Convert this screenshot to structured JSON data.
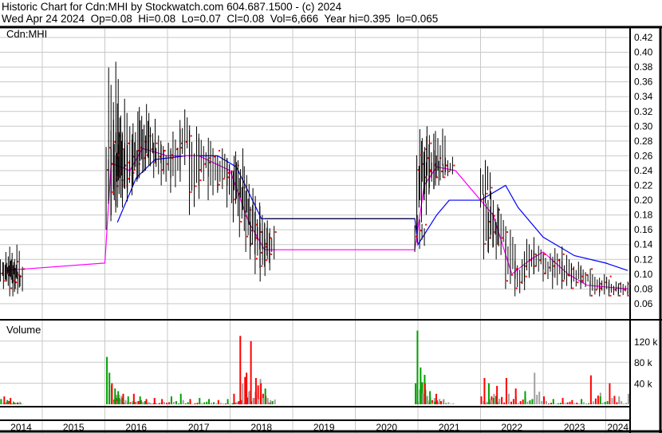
{
  "header": {
    "line1": "Historic Chart for Cdn:MHI by Stockwatch.com 604.687.1500 - (c) 2024",
    "line2": "Wed Apr 24 2024  Op=0.08  Hi=0.08  Lo=0.07  Cl=0.08  Vol=6,666  Year hi=0.395  lo=0.065"
  },
  "chart_data": {
    "type": "line",
    "price_panel_label": "Cdn:MHI",
    "volume_panel_label": "Volume",
    "price_ticks": [
      "0.42",
      "0.40",
      "0.38",
      "0.36",
      "0.34",
      "0.32",
      "0.30",
      "0.28",
      "0.26",
      "0.24",
      "0.22",
      "0.20",
      "0.18",
      "0.16",
      "0.14",
      "0.12",
      "0.10",
      "0.08",
      "0.06"
    ],
    "price_ylim": [
      0.05,
      0.43
    ],
    "volume_ticks": [
      "40 k",
      "80 k",
      "120 k"
    ],
    "volume_ylim": [
      0,
      150
    ],
    "year_labels": [
      "2014",
      "2015",
      "2016",
      "2017",
      "2018",
      "2019",
      "2020",
      "2021",
      "2022",
      "2023",
      "2024"
    ],
    "xlim": [
      2014.32,
      2024.39
    ],
    "grid": true,
    "colors": {
      "bars": "#000000",
      "up_marks": "#ff0000",
      "ma_short": "#ff00ff",
      "ma_long": "#0000ff",
      "halt_line": "#000000",
      "vol_up": "#00a000",
      "vol_down": "#ff0000",
      "vol_flat": "#a0a0a0"
    },
    "ohlcv_columns": [
      "year",
      "high",
      "low",
      "close",
      "volume_k"
    ],
    "ohlcv": [
      [
        2014.33,
        0.12,
        0.09,
        0.11,
        10
      ],
      [
        2014.38,
        0.13,
        0.08,
        0.1,
        15
      ],
      [
        2014.43,
        0.12,
        0.09,
        0.11,
        8
      ],
      [
        2014.48,
        0.14,
        0.07,
        0.09,
        12
      ],
      [
        2014.53,
        0.11,
        0.07,
        0.1,
        5
      ],
      [
        2016.02,
        0.3,
        0.16,
        0.25,
        90
      ],
      [
        2016.06,
        0.395,
        0.2,
        0.28,
        60
      ],
      [
        2016.1,
        0.32,
        0.18,
        0.22,
        40
      ],
      [
        2016.15,
        0.3,
        0.2,
        0.24,
        30
      ],
      [
        2016.2,
        0.35,
        0.19,
        0.27,
        25
      ],
      [
        2016.28,
        0.29,
        0.19,
        0.23,
        20
      ],
      [
        2016.36,
        0.3,
        0.21,
        0.26,
        15
      ],
      [
        2016.45,
        0.32,
        0.22,
        0.25,
        20
      ],
      [
        2016.55,
        0.33,
        0.23,
        0.28,
        15
      ],
      [
        2016.65,
        0.31,
        0.24,
        0.27,
        10
      ],
      [
        2016.78,
        0.29,
        0.23,
        0.26,
        12
      ],
      [
        2016.9,
        0.28,
        0.22,
        0.25,
        10
      ],
      [
        2017.05,
        0.3,
        0.21,
        0.27,
        15
      ],
      [
        2017.2,
        0.33,
        0.24,
        0.28,
        20
      ],
      [
        2017.35,
        0.31,
        0.18,
        0.22,
        10
      ],
      [
        2017.5,
        0.29,
        0.22,
        0.25,
        12
      ],
      [
        2017.65,
        0.28,
        0.2,
        0.26,
        10
      ],
      [
        2017.8,
        0.27,
        0.21,
        0.23,
        8
      ],
      [
        2017.95,
        0.26,
        0.19,
        0.24,
        10
      ],
      [
        2018.05,
        0.27,
        0.17,
        0.21,
        20
      ],
      [
        2018.15,
        0.25,
        0.15,
        0.18,
        130
      ],
      [
        2018.25,
        0.22,
        0.13,
        0.16,
        60
      ],
      [
        2018.32,
        0.2,
        0.12,
        0.15,
        120
      ],
      [
        2018.4,
        0.2,
        0.1,
        0.13,
        50
      ],
      [
        2018.48,
        0.18,
        0.09,
        0.12,
        40
      ],
      [
        2018.55,
        0.17,
        0.11,
        0.15,
        30
      ],
      [
        2020.95,
        0.18,
        0.13,
        0.16,
        40
      ],
      [
        2020.98,
        0.28,
        0.16,
        0.25,
        140
      ],
      [
        2021.03,
        0.3,
        0.2,
        0.27,
        70
      ],
      [
        2021.1,
        0.29,
        0.2,
        0.24,
        40
      ],
      [
        2021.18,
        0.27,
        0.21,
        0.25,
        25
      ],
      [
        2021.28,
        0.3,
        0.22,
        0.24,
        20
      ],
      [
        2021.4,
        0.26,
        0.23,
        0.24,
        10
      ],
      [
        2022.0,
        0.26,
        0.19,
        0.21,
        15
      ],
      [
        2022.05,
        0.22,
        0.12,
        0.15,
        50
      ],
      [
        2022.12,
        0.2,
        0.13,
        0.18,
        40
      ],
      [
        2022.25,
        0.19,
        0.12,
        0.15,
        35
      ],
      [
        2022.4,
        0.16,
        0.08,
        0.1,
        50
      ],
      [
        2022.55,
        0.12,
        0.07,
        0.09,
        30
      ],
      [
        2022.7,
        0.15,
        0.09,
        0.12,
        25
      ],
      [
        2022.85,
        0.14,
        0.1,
        0.12,
        60
      ],
      [
        2023.0,
        0.13,
        0.09,
        0.11,
        15
      ],
      [
        2023.15,
        0.14,
        0.08,
        0.12,
        10
      ],
      [
        2023.3,
        0.13,
        0.08,
        0.1,
        12
      ],
      [
        2023.45,
        0.12,
        0.08,
        0.09,
        8
      ],
      [
        2023.6,
        0.11,
        0.08,
        0.1,
        10
      ],
      [
        2023.75,
        0.1,
        0.07,
        0.08,
        55
      ],
      [
        2023.9,
        0.1,
        0.07,
        0.09,
        15
      ],
      [
        2024.05,
        0.09,
        0.07,
        0.08,
        40
      ],
      [
        2024.2,
        0.09,
        0.07,
        0.08,
        15
      ],
      [
        2024.35,
        0.08,
        0.07,
        0.08,
        20
      ]
    ],
    "ma_long": [
      [
        2016.2,
        0.17
      ],
      [
        2016.5,
        0.23
      ],
      [
        2016.8,
        0.255
      ],
      [
        2017.3,
        0.26
      ],
      [
        2017.8,
        0.26
      ],
      [
        2018.1,
        0.245
      ],
      [
        2018.3,
        0.21
      ],
      [
        2018.5,
        0.175
      ],
      [
        2020.95,
        0.175
      ],
      [
        2021.0,
        0.14
      ],
      [
        2021.3,
        0.18
      ],
      [
        2021.5,
        0.2
      ],
      [
        2022.0,
        0.2
      ],
      [
        2022.4,
        0.22
      ],
      [
        2022.6,
        0.19
      ],
      [
        2023.0,
        0.15
      ],
      [
        2023.5,
        0.125
      ],
      [
        2024.0,
        0.115
      ],
      [
        2024.35,
        0.105
      ]
    ],
    "ma_short": [
      [
        2014.4,
        0.105
      ],
      [
        2016.0,
        0.115
      ],
      [
        2016.1,
        0.25
      ],
      [
        2016.4,
        0.24
      ],
      [
        2016.6,
        0.27
      ],
      [
        2017.0,
        0.26
      ],
      [
        2017.5,
        0.26
      ],
      [
        2018.0,
        0.24
      ],
      [
        2018.3,
        0.17
      ],
      [
        2018.55,
        0.133
      ],
      [
        2020.95,
        0.133
      ],
      [
        2021.1,
        0.22
      ],
      [
        2021.3,
        0.245
      ],
      [
        2021.6,
        0.24
      ],
      [
        2022.0,
        0.2
      ],
      [
        2022.2,
        0.18
      ],
      [
        2022.5,
        0.1
      ],
      [
        2022.8,
        0.12
      ],
      [
        2023.0,
        0.13
      ],
      [
        2023.4,
        0.1
      ],
      [
        2023.7,
        0.085
      ],
      [
        2024.35,
        0.08
      ]
    ]
  }
}
